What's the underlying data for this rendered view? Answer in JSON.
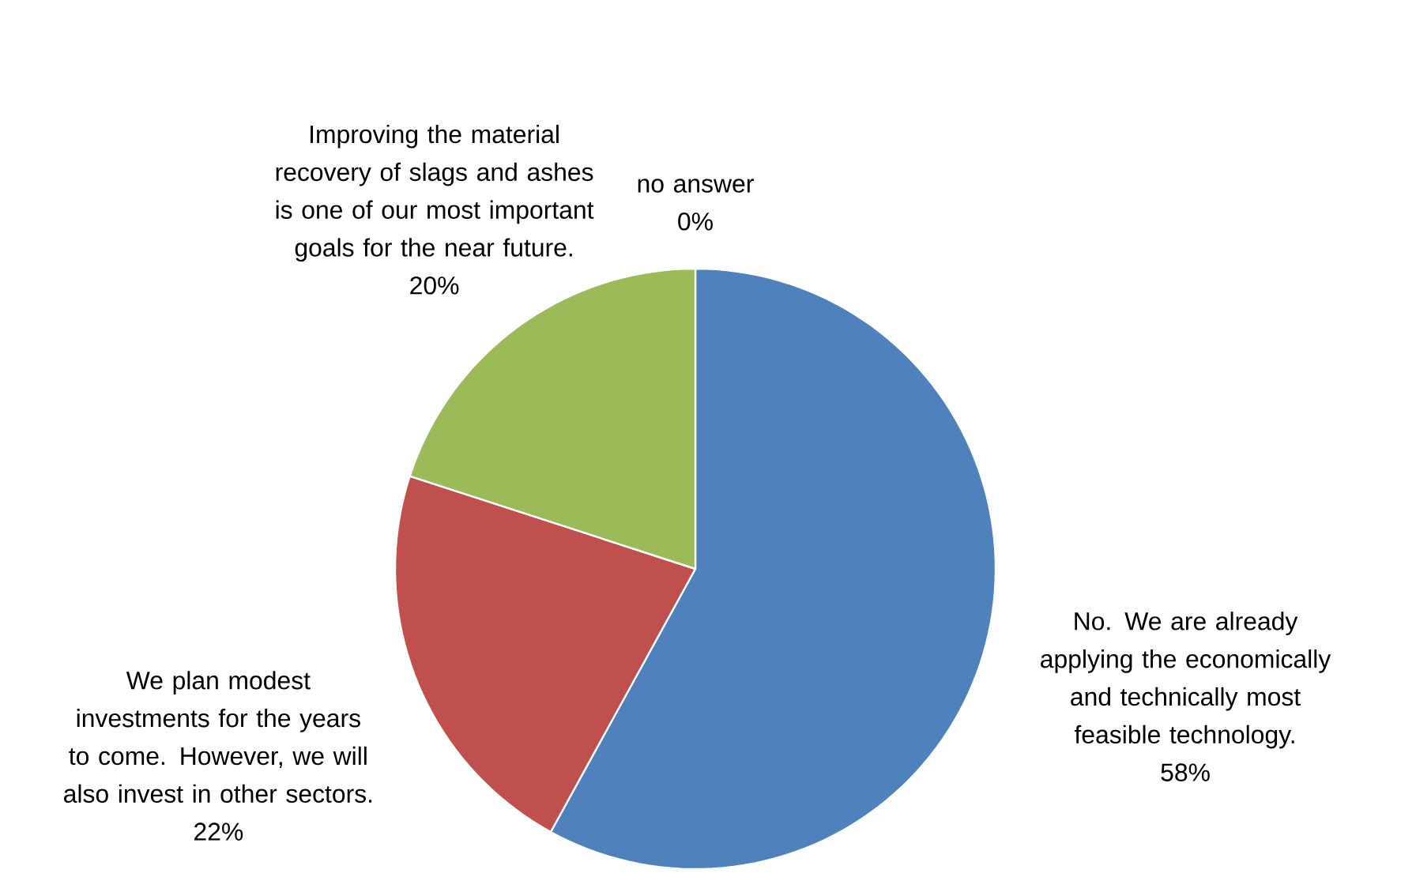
{
  "chart_data": {
    "type": "pie",
    "categories": [
      "No. We are already applying the economically and technically most feasible technology.",
      "We plan modest investments for the years to come. However, we will also invest in other sectors.",
      "Improving the material recovery of slags and ashes is one of our most important goals for the near future.",
      "no answer"
    ],
    "values": [
      58,
      22,
      20,
      0
    ],
    "value_labels": [
      "58%",
      "22%",
      "20%",
      "0%"
    ],
    "colors": [
      "#4f81bd",
      "#c0504d",
      "#9bbb59",
      "#8064a2"
    ]
  }
}
